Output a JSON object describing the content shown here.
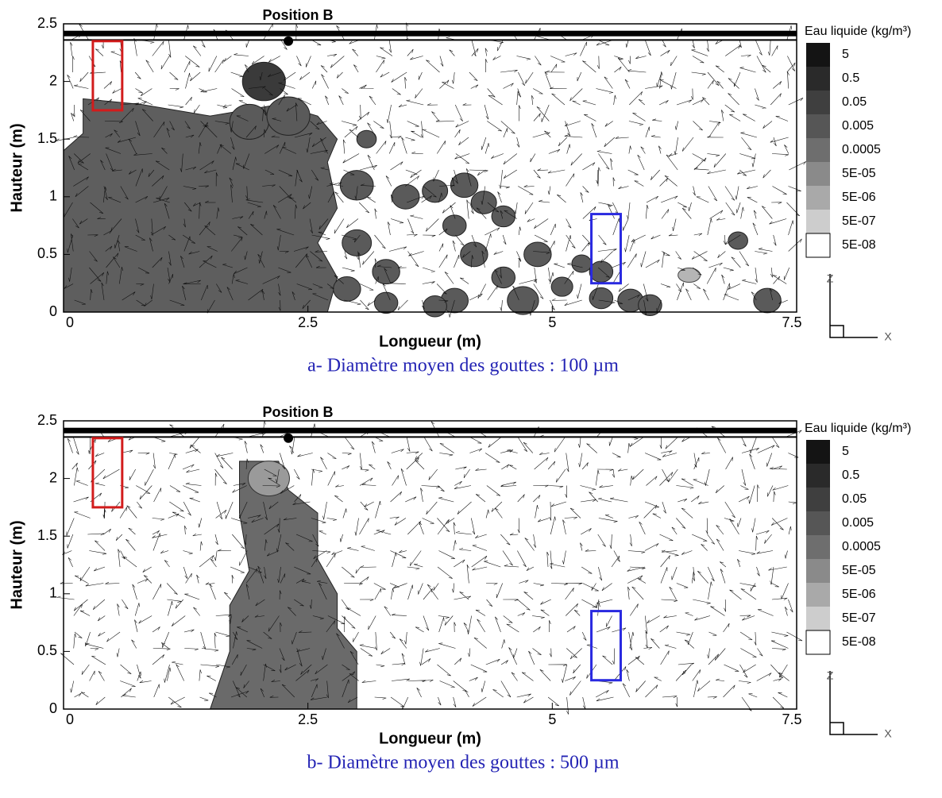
{
  "chart_data": [
    {
      "type": "contour",
      "annotation": "Position B",
      "xlabel": "Longueur (m)",
      "ylabel": "Hauteur (m)",
      "xlim": [
        0,
        7.5
      ],
      "ylim": [
        0,
        2.5
      ],
      "xticks": [
        0,
        2.5,
        5,
        7.5
      ],
      "yticks": [
        0,
        0.5,
        1,
        1.5,
        2,
        2.5
      ],
      "legend_title": "Eau liquide (kg/m³)",
      "levels": [
        5,
        0.5,
        0.05,
        0.005,
        0.0005,
        {
          "value": 5e-05,
          "label": "5E-05"
        },
        {
          "value": 5e-06,
          "label": "5E-06"
        },
        {
          "value": 5e-07,
          "label": "5E-07"
        },
        {
          "value": 5e-08,
          "label": "5E-08"
        }
      ],
      "level_colors": [
        "#141414",
        "#2a2a2a",
        "#3f3f3f",
        "#565656",
        "#6e6e6e",
        "#8a8a8a",
        "#a9a9a9",
        "#cdcdcd",
        "#ffffff"
      ],
      "triad_labels": [
        "Z",
        "X"
      ],
      "caption": "a- Diamètre moyen des gouttes : 100 µm"
    },
    {
      "type": "contour",
      "annotation": "Position B",
      "xlabel": "Longueur (m)",
      "ylabel": "Hauteur (m)",
      "xlim": [
        0,
        7.5
      ],
      "ylim": [
        0,
        2.5
      ],
      "xticks": [
        0,
        2.5,
        5,
        7.5
      ],
      "yticks": [
        0,
        0.5,
        1,
        1.5,
        2,
        2.5
      ],
      "legend_title": "Eau liquide (kg/m³)",
      "levels": [
        5,
        0.5,
        0.05,
        0.005,
        0.0005,
        {
          "value": 5e-05,
          "label": "5E-05"
        },
        {
          "value": 5e-06,
          "label": "5E-06"
        },
        {
          "value": 5e-07,
          "label": "5E-07"
        },
        {
          "value": 5e-08,
          "label": "5E-08"
        }
      ],
      "level_colors": [
        "#141414",
        "#2a2a2a",
        "#3f3f3f",
        "#565656",
        "#6e6e6e",
        "#8a8a8a",
        "#a9a9a9",
        "#cdcdcd",
        "#ffffff"
      ],
      "triad_labels": [
        "Z",
        "X"
      ],
      "caption": "b- Diamètre moyen des gouttes : 500 µm"
    }
  ]
}
